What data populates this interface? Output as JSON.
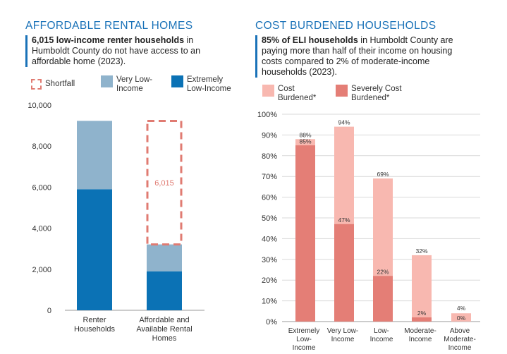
{
  "left": {
    "title": "AFFORDABLE RENTAL HOMES",
    "callout_bold": "6,015 low-income renter households",
    "callout_rest": " in Humboldt County do not have access to an affordable home (2023).",
    "legend": [
      {
        "label": "Shortfall",
        "color": "#e07b72",
        "style": "dashed"
      },
      {
        "label": "Very Low-Income",
        "color": "#8fb3cc"
      },
      {
        "label": "Extremely Low-Income",
        "color": "#0b72b5"
      }
    ]
  },
  "right": {
    "title": "COST BURDENED HOUSEHOLDS",
    "callout_bold": "85% of ELI households",
    "callout_rest": " in Humboldt County are paying more than half of their income on housing costs compared to 2% of moderate-income households (2023).",
    "legend": [
      {
        "label": "Cost Burdened*",
        "color": "#f8b8b0"
      },
      {
        "label": "Severely Cost Burdened*",
        "color": "#e47e76"
      }
    ]
  },
  "chart_data": [
    {
      "type": "bar",
      "stacked": true,
      "categories": [
        "Renter Households",
        "Affordable and Available Rental Homes"
      ],
      "series": [
        {
          "name": "Extremely Low-Income",
          "values": [
            5900,
            1900
          ],
          "color": "#0b72b5"
        },
        {
          "name": "Very Low-Income",
          "values": [
            3330,
            1310
          ],
          "color": "#8fb3cc"
        },
        {
          "name": "Shortfall",
          "values": [
            0,
            6015
          ],
          "color": "#e07b72",
          "style": "dashed-outline"
        }
      ],
      "annotations": [
        {
          "category": "Affordable and Available Rental Homes",
          "text": "6,015"
        }
      ],
      "ylim": [
        0,
        10000
      ],
      "yticks": [
        "0",
        "2,000",
        "4,000",
        "6,000",
        "8,000",
        "10,000"
      ],
      "grid": false
    },
    {
      "type": "bar",
      "overlapped": true,
      "categories": [
        "Extremely Low-Income",
        "Very Low-Income",
        "Low-Income",
        "Moderate-Income",
        "Above Moderate-Income"
      ],
      "series": [
        {
          "name": "Cost Burdened*",
          "values": [
            88,
            94,
            69,
            32,
            4
          ],
          "color": "#f8b8b0"
        },
        {
          "name": "Severely Cost Burdened*",
          "values": [
            85,
            47,
            22,
            2,
            0
          ],
          "color": "#e47e76"
        }
      ],
      "data_labels": {
        "cost": [
          "88%",
          "94%",
          "69%",
          "32%",
          "4%"
        ],
        "severe": [
          "85%",
          "47%",
          "22%",
          "2%",
          "0%"
        ]
      },
      "ylim": [
        0,
        100
      ],
      "yticks": [
        "0%",
        "10%",
        "20%",
        "30%",
        "40%",
        "50%",
        "60%",
        "70%",
        "80%",
        "90%",
        "100%"
      ],
      "grid": true
    }
  ]
}
